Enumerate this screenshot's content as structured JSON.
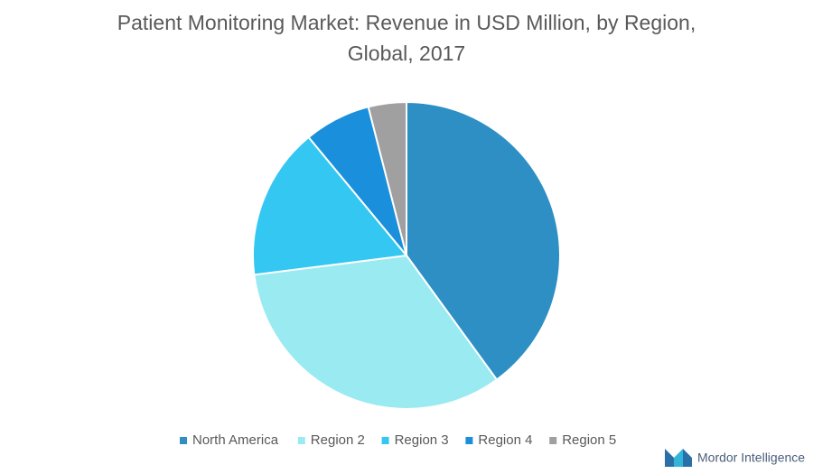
{
  "chart_data": {
    "type": "pie",
    "title": "Patient Monitoring Market: Revenue in USD Million, by Region, Global, 2017",
    "categories": [
      "North America",
      "Region 2",
      "Region 3",
      "Region 4",
      "Region 5"
    ],
    "values": [
      40,
      33,
      16,
      7,
      4
    ],
    "colors": [
      "#2e8fc4",
      "#9aeaf2",
      "#33c7f2",
      "#1a8fdc",
      "#a0a0a0"
    ],
    "legend": "bottom",
    "source": "Mordor Intelligence"
  }
}
